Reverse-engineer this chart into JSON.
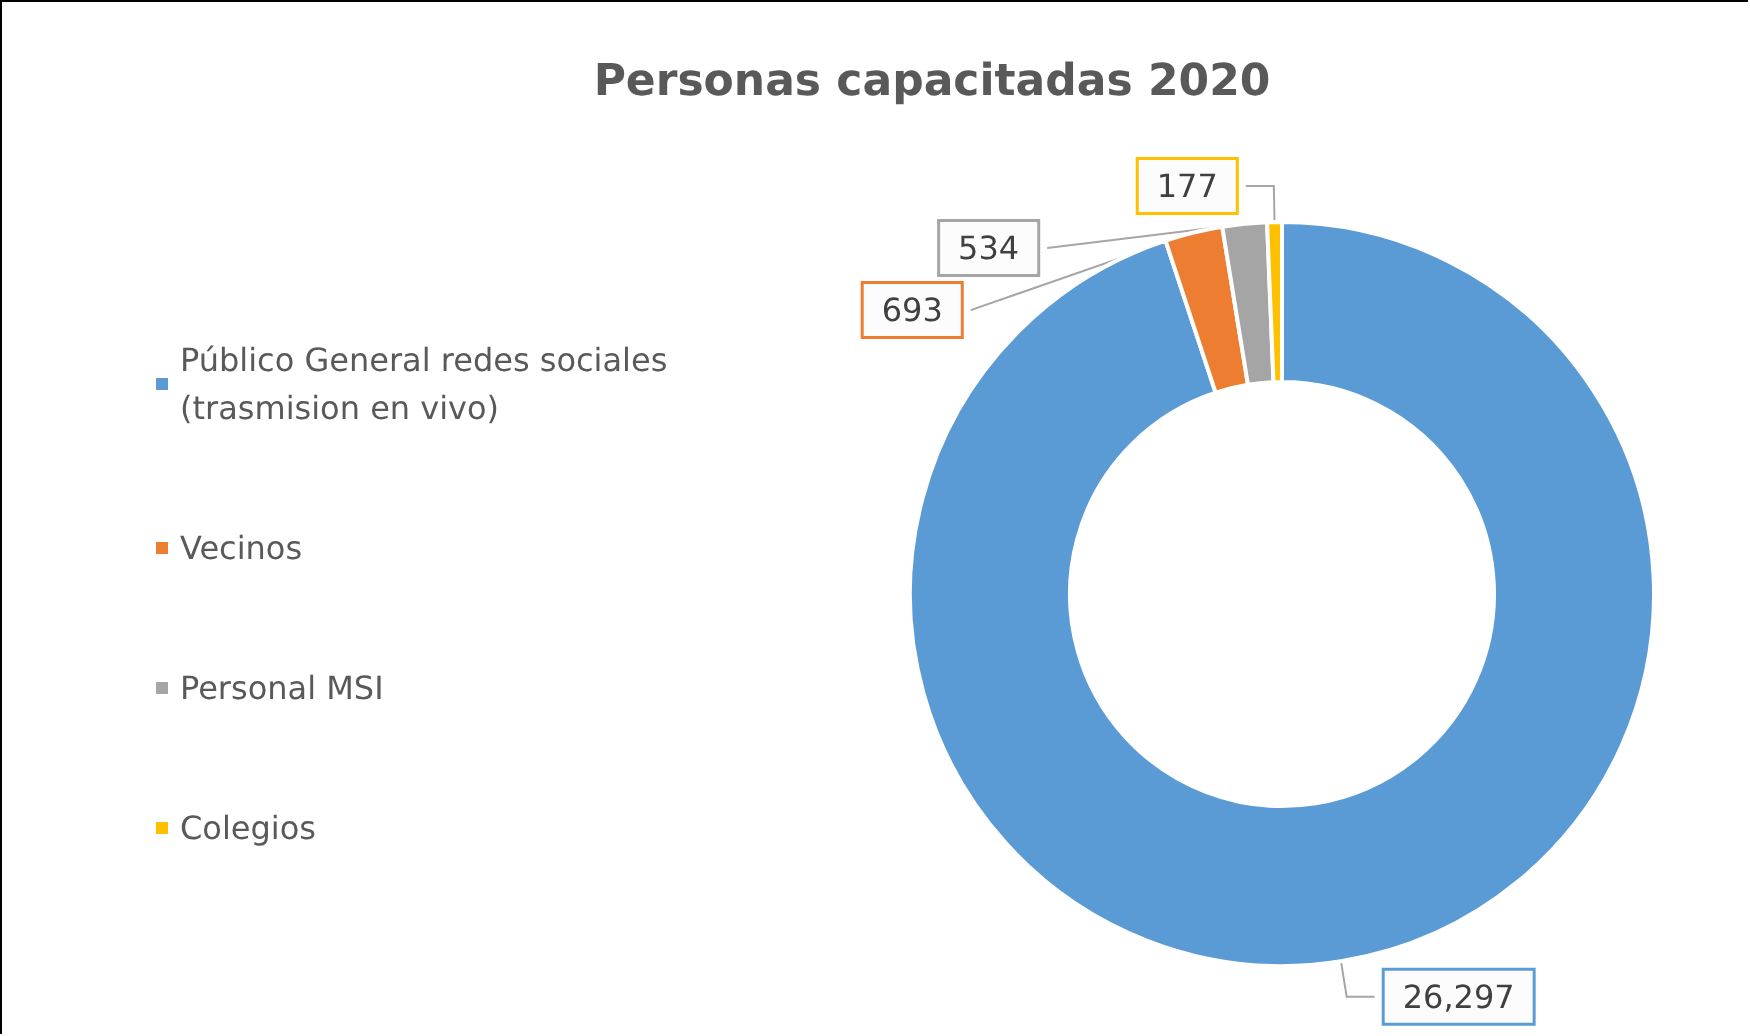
{
  "chart_data": {
    "type": "donut",
    "title": "Personas capacitadas 2020",
    "categories": [
      "Público General redes sociales (trasmision en vivo)",
      "Vecinos",
      "Personal MSI",
      "Colegios"
    ],
    "values": [
      26297,
      693,
      534,
      177
    ],
    "colors": [
      "#5b9bd5",
      "#ed7d31",
      "#a5a5a5",
      "#ffc000"
    ],
    "value_labels": [
      "26,297",
      "693",
      "534",
      "177"
    ],
    "legend": "left"
  }
}
